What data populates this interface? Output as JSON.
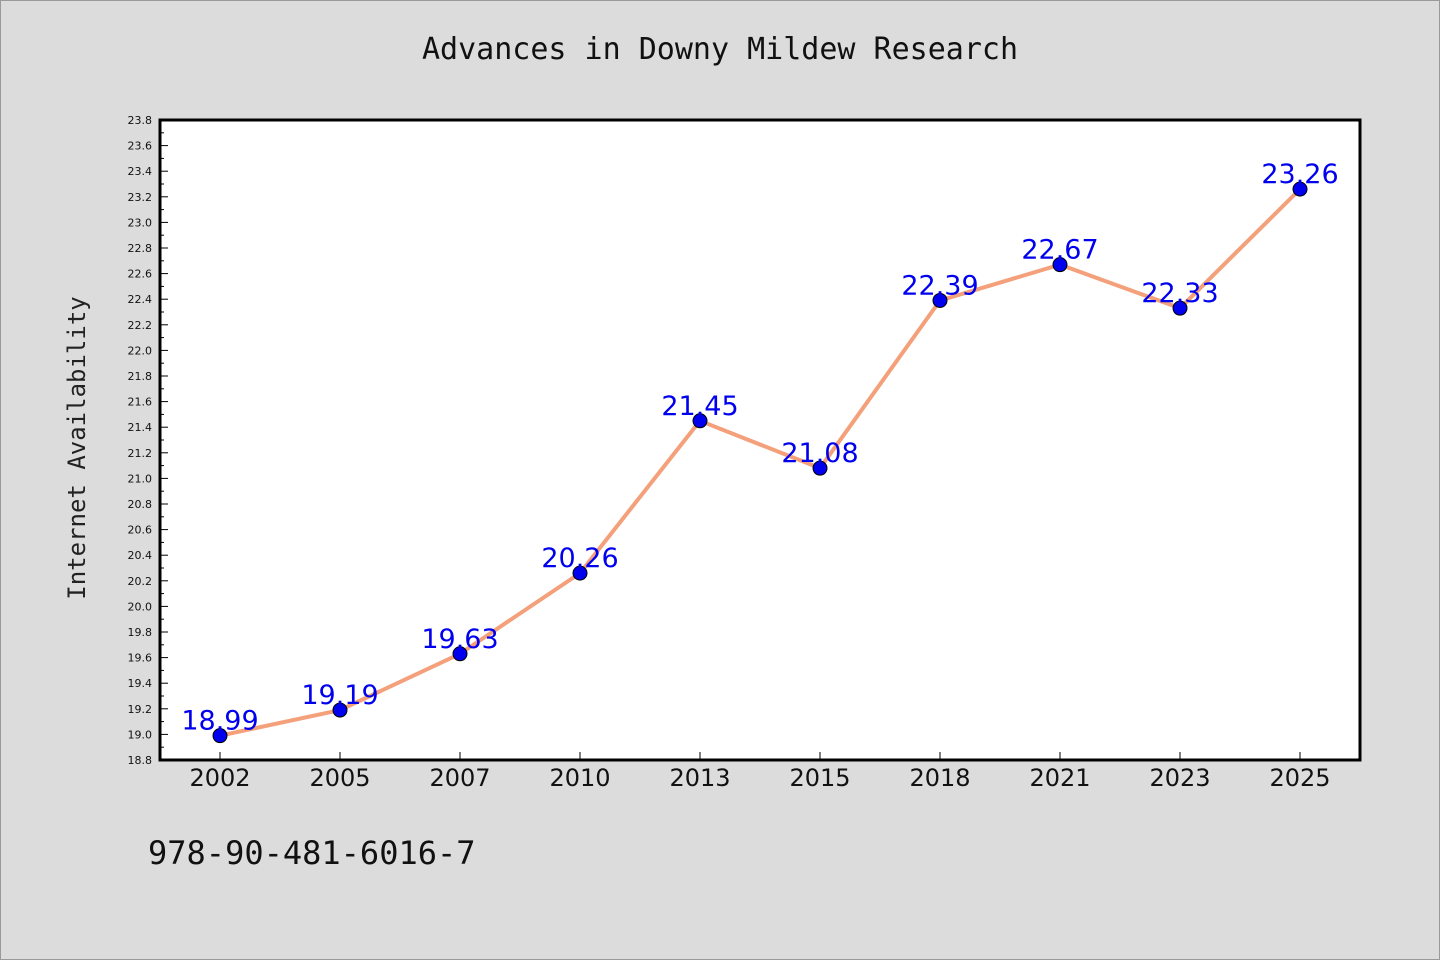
{
  "chart_data": {
    "type": "line",
    "title": "Advances in Downy Mildew Research",
    "xlabel": "",
    "ylabel": "Internet Availability",
    "categories": [
      "2002",
      "2005",
      "2007",
      "2010",
      "2013",
      "2015",
      "2018",
      "2021",
      "2023",
      "2025"
    ],
    "series": [
      {
        "values": [
          18.99,
          19.19,
          19.63,
          20.26,
          21.45,
          21.08,
          22.39,
          22.67,
          22.33,
          23.26
        ],
        "line_color": "#f4a07a",
        "marker_color": "#0000ee"
      }
    ],
    "data_labels": [
      "18.99",
      "19.19",
      "19.63",
      "20.26",
      "21.45",
      "21.08",
      "22.39",
      "22.67",
      "22.33",
      "23.26"
    ],
    "ylim": [
      18.8,
      23.8
    ],
    "yticks": [
      "18.8",
      "19.0",
      "19.2",
      "19.4",
      "19.6",
      "19.8",
      "20.0",
      "20.2",
      "20.4",
      "20.6",
      "20.8",
      "21.0",
      "21.2",
      "21.4",
      "21.6",
      "21.8",
      "22.0",
      "22.2",
      "22.4",
      "22.6",
      "22.8",
      "23.0",
      "23.2",
      "23.4",
      "23.6",
      "23.8"
    ],
    "grid": false,
    "legend": "none"
  },
  "footer": {
    "isbn": "978-90-481-6016-7"
  }
}
